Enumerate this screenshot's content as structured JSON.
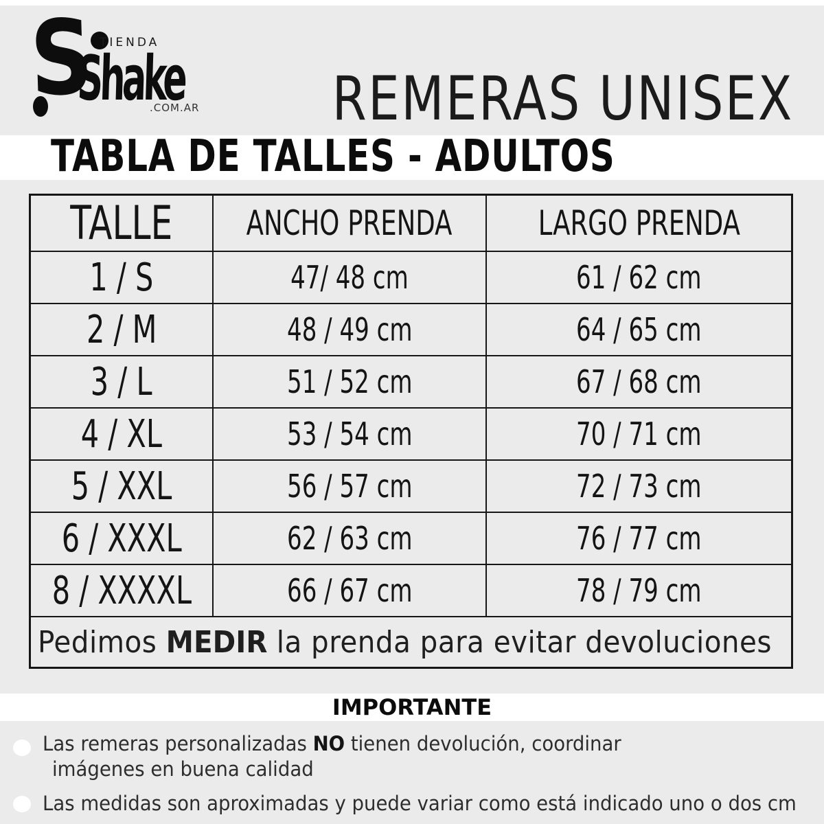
{
  "logo": {
    "mark_letter": "S",
    "top": "TIENDA",
    "brand": "Shake",
    "domain": ".COM.AR"
  },
  "title": "REMERAS UNISEX",
  "subtitle": "TABLA DE TALLES - ADULTOS",
  "size_table": {
    "columns": [
      "TALLE",
      "ANCHO PRENDA",
      "LARGO PRENDA"
    ],
    "rows": [
      {
        "talle": "1 / S",
        "ancho": "47/ 48 cm",
        "largo": "61 / 62 cm"
      },
      {
        "talle": "2 / M",
        "ancho": "48 / 49 cm",
        "largo": "64 / 65 cm"
      },
      {
        "talle": "3 / L",
        "ancho": "51 / 52 cm",
        "largo": "67 / 68 cm"
      },
      {
        "talle": "4 / XL",
        "ancho": "53 / 54 cm",
        "largo": "70 / 71 cm"
      },
      {
        "talle": "5 / XXL",
        "ancho": "56 / 57 cm",
        "largo": "72 / 73 cm"
      },
      {
        "talle": "6 / XXXL",
        "ancho": "62 / 63 cm",
        "largo": "76 / 77 cm"
      },
      {
        "talle": "8 / XXXXL",
        "ancho": "66 / 67 cm",
        "largo": "78 / 79 cm"
      }
    ],
    "note": {
      "pre": "Pedimos ",
      "bold": "MEDIR",
      "post": " la prenda para evitar devoluciones"
    }
  },
  "important": {
    "heading": "IMPORTANTE",
    "note1": {
      "pre": "Las remeras personalizadas ",
      "bold": "NO",
      "post": " tienen devolución, coordinar",
      "line2": "imágenes en buena calidad"
    },
    "note2": "Las medidas son aproximadas y puede variar como está indicado uno o dos cm"
  },
  "colors": {
    "background": "#ebebeb",
    "band": "#ffffff",
    "ink": "#141414",
    "note_ink": "#2d2d2d"
  }
}
